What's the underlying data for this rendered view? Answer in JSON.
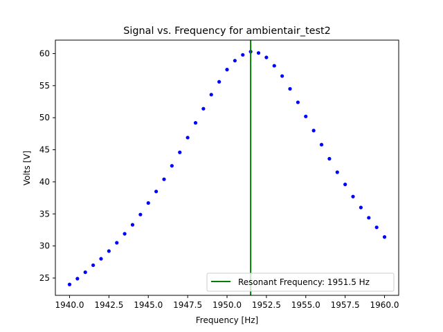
{
  "chart_data": {
    "type": "scatter",
    "title": "Signal vs. Frequency for ambientair_test2",
    "xlabel": "Frequency [Hz]",
    "ylabel": "Volts [V]",
    "xlim": [
      1939.1,
      1960.9
    ],
    "ylim": [
      22.3,
      62.1
    ],
    "xticks": [
      1940.0,
      1942.5,
      1945.0,
      1947.5,
      1950.0,
      1952.5,
      1955.0,
      1957.5,
      1960.0
    ],
    "xtick_labels": [
      "1940.0",
      "1942.5",
      "1945.0",
      "1947.5",
      "1950.0",
      "1952.5",
      "1955.0",
      "1957.5",
      "1960.0"
    ],
    "yticks": [
      25,
      30,
      35,
      40,
      45,
      50,
      55,
      60
    ],
    "ytick_labels": [
      "25",
      "30",
      "35",
      "40",
      "45",
      "50",
      "55",
      "60"
    ],
    "grid": false,
    "legend_position": "lower-right",
    "series": [
      {
        "marker": "dot",
        "color": "#0000ff",
        "x": [
          1940.0,
          1940.5,
          1941.0,
          1941.5,
          1942.0,
          1942.5,
          1943.0,
          1943.5,
          1944.0,
          1944.5,
          1945.0,
          1945.5,
          1946.0,
          1946.5,
          1947.0,
          1947.5,
          1948.0,
          1948.5,
          1949.0,
          1949.5,
          1950.0,
          1950.5,
          1951.0,
          1951.5,
          1952.0,
          1952.5,
          1953.0,
          1953.5,
          1954.0,
          1954.5,
          1955.0,
          1955.5,
          1956.0,
          1956.5,
          1957.0,
          1957.5,
          1958.0,
          1958.5,
          1959.0,
          1959.5,
          1960.0
        ],
        "y": [
          24.0,
          24.9,
          25.9,
          27.0,
          28.0,
          29.2,
          30.5,
          31.9,
          33.3,
          34.9,
          36.7,
          38.5,
          40.4,
          42.5,
          44.6,
          46.9,
          49.2,
          51.4,
          53.6,
          55.6,
          57.5,
          58.9,
          59.8,
          60.3,
          60.1,
          59.4,
          58.1,
          56.5,
          54.5,
          52.4,
          50.2,
          48.0,
          45.8,
          43.6,
          41.5,
          39.6,
          37.7,
          36.0,
          34.4,
          32.9,
          31.4
        ]
      }
    ],
    "vline": {
      "x": 1951.5,
      "color": "#008000",
      "label": "Resonant Frequency: 1951.5 Hz"
    }
  }
}
